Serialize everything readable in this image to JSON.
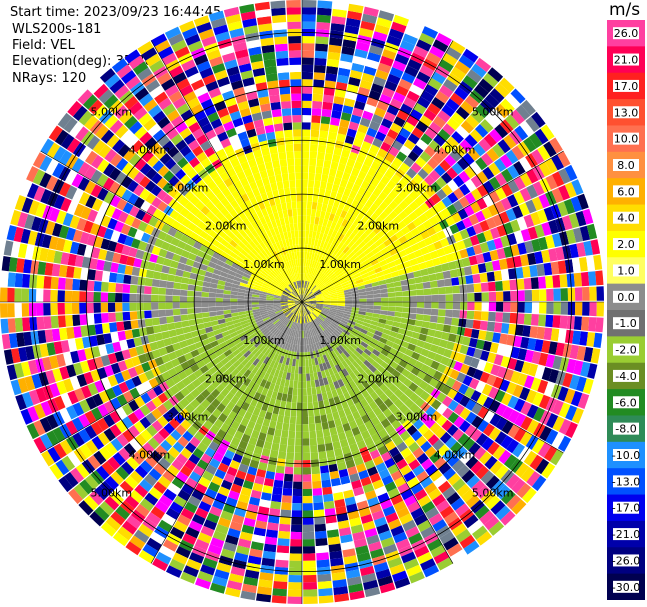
{
  "header": {
    "start_time_label": "Start time:",
    "start_time": "2023/09/23 16:44:45",
    "instrument": "WLS200s-181",
    "field_label": "Field:",
    "field": "VEL",
    "elevation_label": "Elevation(deg):",
    "elevation": "35.30",
    "nrays_label": "NRays:",
    "nrays": "120"
  },
  "colorbar": {
    "unit": "m/s",
    "levels": [
      {
        "label": "26.0",
        "color": "#ff3fa0"
      },
      {
        "label": "21.0",
        "color": "#ff0055"
      },
      {
        "label": "17.0",
        "color": "#ff2020"
      },
      {
        "label": "13.0",
        "color": "#ff5030"
      },
      {
        "label": "10.0",
        "color": "#ff7050"
      },
      {
        "label": "8.0",
        "color": "#ff9040"
      },
      {
        "label": "6.0",
        "color": "#ffb000"
      },
      {
        "label": "4.0",
        "color": "#ffdd00"
      },
      {
        "label": "2.0",
        "color": "#ffff00"
      },
      {
        "label": "1.0",
        "color": "#ffff60"
      },
      {
        "label": "0.0",
        "color": "#8c8c8c"
      },
      {
        "label": "-1.0",
        "color": "#707070"
      },
      {
        "label": "-2.0",
        "color": "#9acd32"
      },
      {
        "label": "-4.0",
        "color": "#6b8e23"
      },
      {
        "label": "-6.0",
        "color": "#228b22"
      },
      {
        "label": "-8.0",
        "color": "#2e8b57"
      },
      {
        "label": "-10.0",
        "color": "#1e90ff"
      },
      {
        "label": "-13.0",
        "color": "#0050ff"
      },
      {
        "label": "-17.0",
        "color": "#0000ee"
      },
      {
        "label": "-21.0",
        "color": "#0000aa"
      },
      {
        "label": "-26.0",
        "color": "#000080"
      },
      {
        "label": "-30.0",
        "color": "#000050"
      }
    ]
  },
  "chart_data": {
    "type": "heatmap",
    "projection": "polar PPI",
    "field": "VEL",
    "range_rings_km": [
      1.0,
      2.0,
      3.0,
      4.0,
      5.0
    ],
    "range_ring_labels": [
      "1.00km",
      "2.00km",
      "3.00km",
      "4.00km",
      "5.00km"
    ],
    "max_range_km": 5.6,
    "azimuth_lines_deg": [
      0,
      30,
      60,
      90,
      120,
      150,
      180,
      210,
      240,
      270,
      300,
      330
    ],
    "nrays": 120,
    "vmin": -30.0,
    "vmax": 26.0,
    "description_regions": [
      {
        "range_km": [
          0,
          0.8
        ],
        "azimuth_deg": [
          290,
          90
        ],
        "velocity_ms": 1.0
      },
      {
        "range_km": [
          0,
          1.5
        ],
        "azimuth_deg": [
          90,
          290
        ],
        "velocity_ms": -1.0
      },
      {
        "range_km": [
          0.8,
          3.2
        ],
        "azimuth_deg": [
          300,
          70
        ],
        "velocity_ms": 2.0
      },
      {
        "range_km": [
          0.6,
          1.7
        ],
        "azimuth_deg": [
          40,
          290
        ],
        "velocity_ms": 0.0
      },
      {
        "range_km": [
          1.5,
          3.2
        ],
        "azimuth_deg": [
          100,
          270
        ],
        "velocity_ms": -2.0
      },
      {
        "range_km": [
          3.2,
          5.6
        ],
        "azimuth_deg": [
          0,
          360
        ],
        "velocity_ms": "noise"
      }
    ]
  }
}
